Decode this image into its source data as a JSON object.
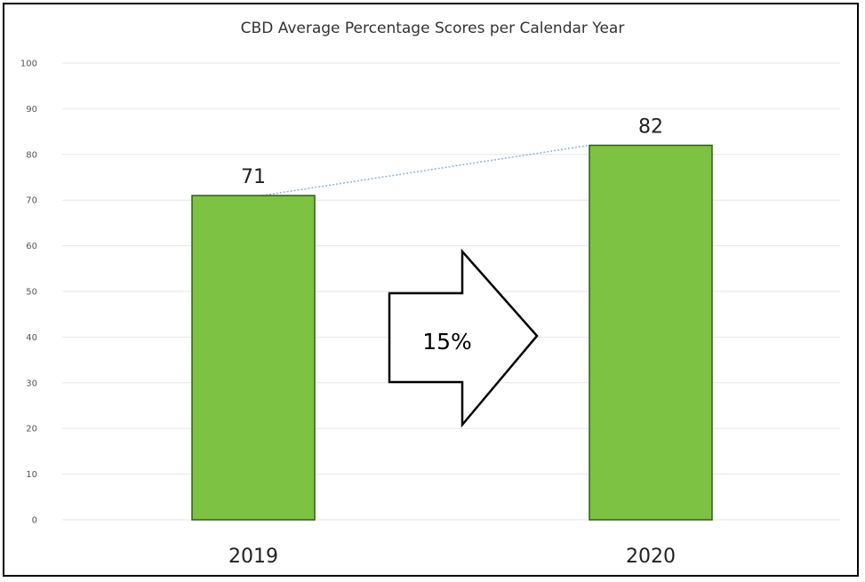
{
  "chart_data": {
    "type": "bar",
    "title": "CBD Average Percentage Scores per Calendar Year",
    "xlabel": "",
    "ylabel": "",
    "categories": [
      "2019",
      "2020"
    ],
    "values": [
      71,
      82
    ],
    "data_labels": [
      "71",
      "82"
    ],
    "ylim": [
      0,
      100
    ],
    "yticks": [
      0,
      10,
      20,
      30,
      40,
      50,
      60,
      70,
      80,
      90,
      100
    ],
    "grid": true,
    "legend": "none",
    "annotations": [
      {
        "type": "arrow",
        "text": "15%"
      },
      {
        "type": "trend-line",
        "style": "dotted"
      }
    ]
  },
  "colors": {
    "bar_fill": "#7DC242",
    "bar_stroke": "#2E5E12",
    "grid": "#E6E6E6",
    "trend": "#8FB4D9"
  }
}
